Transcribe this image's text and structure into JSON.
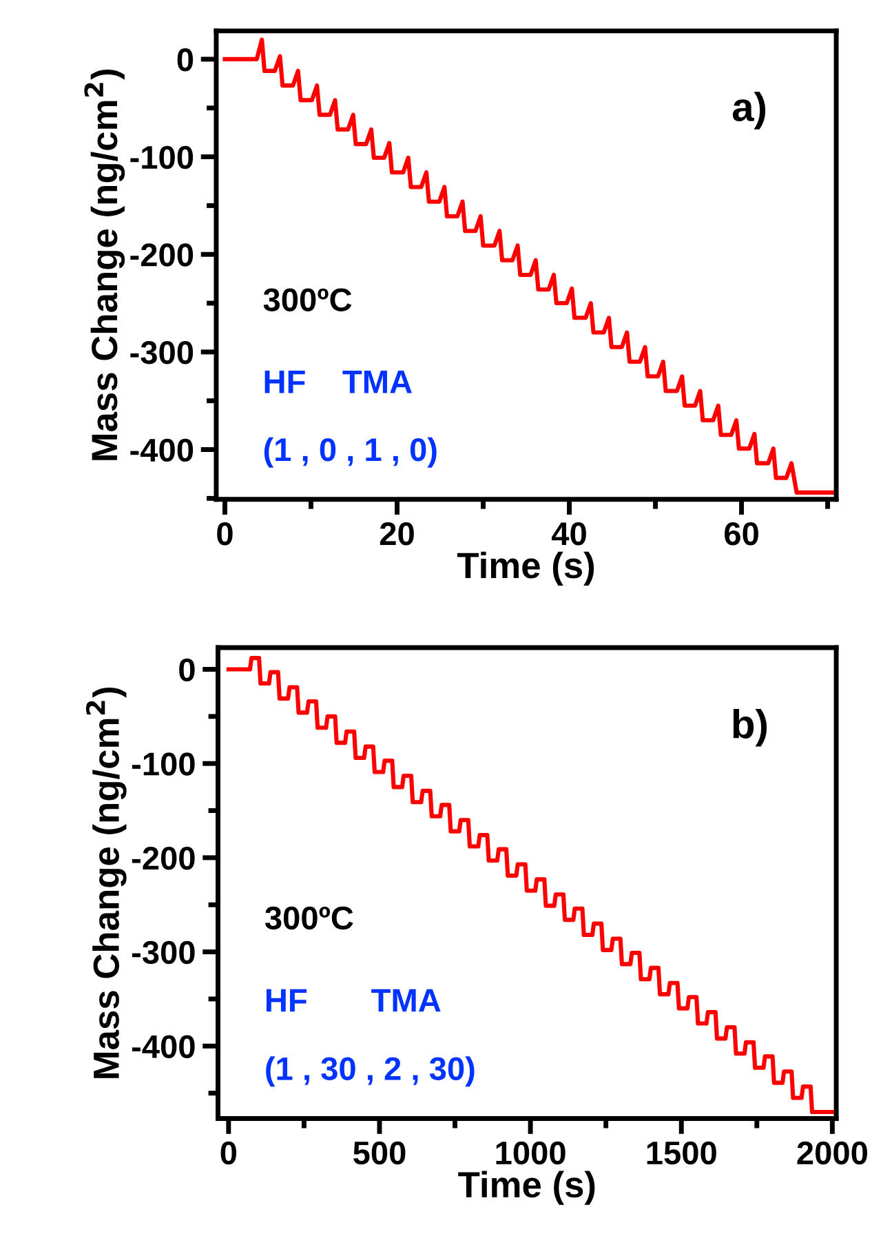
{
  "chart_data": [
    {
      "type": "line",
      "xlabel": "Time (s)",
      "ylabel": "Mass Change (ng/cm$^{2}$)",
      "xlim": [
        -1,
        71
      ],
      "ylim": [
        -451,
        29
      ],
      "xticks": [
        0,
        20,
        40,
        60
      ],
      "yticks": [
        0,
        -100,
        -200,
        -300,
        -400
      ],
      "grid": false,
      "legend": false,
      "annotations": [
        "a)",
        "300ºC",
        "HF    TMA",
        "(1 , 0 , 1 , 0)"
      ],
      "series": [
        {
          "color": "#ff0000",
          "x": [
            0,
            3.7,
            4.3,
            4.6,
            5.8,
            6.4,
            6.7,
            7.9,
            8.5,
            8.8,
            10.1,
            10.7,
            11.0,
            12.2,
            12.8,
            13.1,
            14.3,
            14.9,
            15.2,
            16.4,
            17.0,
            17.3,
            18.5,
            19.1,
            19.4,
            20.7,
            21.3,
            21.6,
            22.8,
            23.4,
            23.7,
            24.9,
            25.5,
            25.8,
            27.0,
            27.6,
            27.9,
            29.1,
            29.7,
            30.0,
            31.3,
            31.9,
            32.2,
            33.4,
            34.0,
            34.3,
            35.5,
            36.1,
            36.4,
            37.6,
            38.2,
            38.5,
            39.7,
            40.3,
            40.6,
            41.9,
            42.5,
            42.8,
            44.0,
            44.6,
            44.9,
            46.1,
            46.7,
            47.0,
            48.2,
            48.8,
            49.1,
            50.3,
            50.9,
            51.2,
            52.5,
            53.1,
            53.4,
            54.6,
            55.2,
            55.5,
            56.7,
            57.3,
            57.6,
            58.8,
            59.4,
            59.7,
            60.9,
            61.5,
            61.8,
            63.1,
            63.7,
            64.0,
            65.2,
            65.8,
            66.4,
            70.5
          ],
          "values": [
            0,
            0,
            20,
            -12,
            -12,
            3,
            -27,
            -27,
            -12,
            -42,
            -42,
            -27,
            -57,
            -57,
            -42,
            -72,
            -72,
            -57,
            -87,
            -87,
            -72,
            -101,
            -101,
            -86,
            -116,
            -116,
            -101,
            -131,
            -131,
            -116,
            -146,
            -146,
            -131,
            -161,
            -161,
            -146,
            -176,
            -176,
            -161,
            -191,
            -191,
            -176,
            -206,
            -206,
            -191,
            -221,
            -221,
            -206,
            -236,
            -236,
            -221,
            -250,
            -250,
            -235,
            -265,
            -265,
            -250,
            -280,
            -280,
            -265,
            -295,
            -295,
            -280,
            -310,
            -310,
            -295,
            -325,
            -325,
            -310,
            -340,
            -340,
            -325,
            -355,
            -355,
            -340,
            -370,
            -370,
            -355,
            -385,
            -385,
            -370,
            -399,
            -399,
            -384,
            -414,
            -414,
            -399,
            -429,
            -429,
            -414,
            -444,
            -444
          ]
        }
      ]
    },
    {
      "type": "line",
      "xlabel": "Time (s)",
      "ylabel": "Mass Change (ng/cm$^{2}$)",
      "xlim": [
        -35,
        2013
      ],
      "ylim": [
        -477,
        23
      ],
      "xticks": [
        0,
        500,
        1000,
        1500,
        2000
      ],
      "yticks": [
        0,
        -100,
        -200,
        -300,
        -400
      ],
      "grid": false,
      "legend": false,
      "annotations": [
        "b)",
        "300ºC",
        "HF       TMA",
        "(1 , 30 , 2 , 30)"
      ],
      "series": [
        {
          "color": "#ff0000",
          "x": [
            0,
            71,
            76,
            101,
            106,
            134,
            139,
            164,
            169,
            197,
            202,
            227,
            232,
            260,
            265,
            290,
            295,
            323,
            328,
            353,
            358,
            386,
            391,
            416,
            421,
            449,
            454,
            479,
            484,
            512,
            517,
            542,
            547,
            575,
            580,
            605,
            610,
            638,
            643,
            668,
            673,
            701,
            706,
            731,
            736,
            764,
            769,
            794,
            799,
            827,
            832,
            857,
            862,
            890,
            895,
            920,
            925,
            953,
            958,
            983,
            988,
            1016,
            1021,
            1046,
            1051,
            1079,
            1084,
            1109,
            1114,
            1142,
            1147,
            1172,
            1177,
            1205,
            1210,
            1235,
            1240,
            1268,
            1273,
            1298,
            1303,
            1331,
            1336,
            1361,
            1366,
            1394,
            1399,
            1424,
            1429,
            1457,
            1462,
            1487,
            1492,
            1520,
            1525,
            1550,
            1555,
            1583,
            1588,
            1613,
            1618,
            1646,
            1651,
            1676,
            1681,
            1709,
            1714,
            1739,
            1744,
            1772,
            1777,
            1802,
            1807,
            1835,
            1840,
            1865,
            1870,
            1898,
            1903,
            1928,
            1933,
            2000
          ],
          "values": [
            0,
            0,
            12,
            12,
            -15,
            -15,
            -3,
            -3,
            -31,
            -31,
            -19,
            -19,
            -46,
            -46,
            -34,
            -34,
            -62,
            -62,
            -50,
            -50,
            -78,
            -78,
            -66,
            -66,
            -94,
            -94,
            -82,
            -82,
            -109,
            -109,
            -97,
            -97,
            -125,
            -125,
            -113,
            -113,
            -141,
            -141,
            -129,
            -129,
            -156,
            -156,
            -144,
            -144,
            -172,
            -172,
            -160,
            -160,
            -188,
            -188,
            -176,
            -176,
            -203,
            -203,
            -191,
            -191,
            -219,
            -219,
            -207,
            -207,
            -235,
            -235,
            -223,
            -223,
            -251,
            -251,
            -239,
            -239,
            -266,
            -266,
            -254,
            -254,
            -282,
            -282,
            -270,
            -270,
            -298,
            -298,
            -286,
            -286,
            -313,
            -313,
            -301,
            -301,
            -329,
            -329,
            -317,
            -317,
            -345,
            -345,
            -333,
            -333,
            -360,
            -360,
            -348,
            -348,
            -376,
            -376,
            -364,
            -364,
            -392,
            -392,
            -380,
            -380,
            -408,
            -408,
            -396,
            -396,
            -423,
            -423,
            -411,
            -411,
            -439,
            -439,
            -427,
            -427,
            -455,
            -455,
            -443,
            -443,
            -470,
            -470
          ]
        }
      ]
    }
  ]
}
